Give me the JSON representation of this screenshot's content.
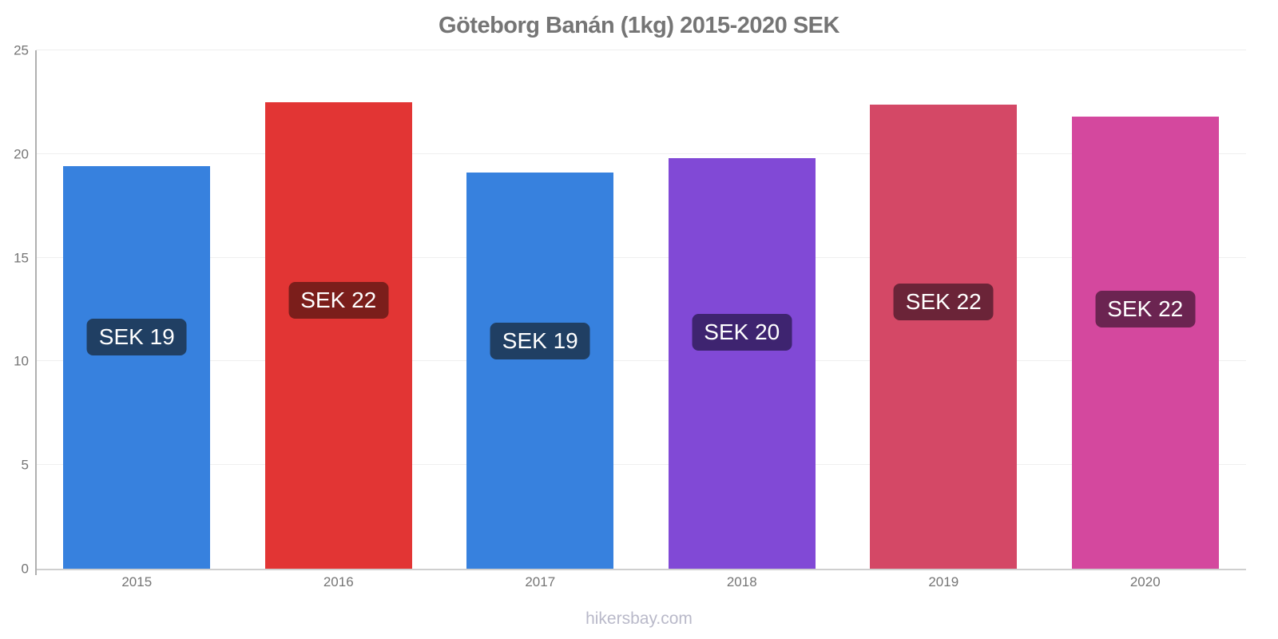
{
  "chart_data": {
    "type": "bar",
    "title": "Göteborg Banán (1kg) 2015-2020 SEK",
    "categories": [
      "2015",
      "2016",
      "2017",
      "2018",
      "2019",
      "2020"
    ],
    "values": [
      19.4,
      22.5,
      19.1,
      19.8,
      22.4,
      21.8
    ],
    "ylim": [
      0,
      25
    ],
    "yticks": [
      0,
      5,
      10,
      15,
      20,
      25
    ],
    "xlabel": "",
    "ylabel": "",
    "grid": true,
    "legend": false,
    "bars": [
      {
        "year": "2015",
        "value": 19.4,
        "label": "SEK 19",
        "color": "#3781DE",
        "label_bg": "#203F63"
      },
      {
        "year": "2016",
        "value": 22.5,
        "label": "SEK 22",
        "color": "#E23534",
        "label_bg": "#7B1E1B"
      },
      {
        "year": "2017",
        "value": 19.1,
        "label": "SEK 19",
        "color": "#3781DE",
        "label_bg": "#203F63"
      },
      {
        "year": "2018",
        "value": 19.8,
        "label": "SEK 20",
        "color": "#8149D6",
        "label_bg": "#3E2470"
      },
      {
        "year": "2019",
        "value": 22.4,
        "label": "SEK 22",
        "color": "#D44866",
        "label_bg": "#6B2438"
      },
      {
        "year": "2020",
        "value": 21.8,
        "label": "SEK 22",
        "color": "#D4489E",
        "label_bg": "#6B2451"
      }
    ]
  },
  "axis": {
    "text_color": "#757575"
  },
  "footer": {
    "text": "hikersbay.com"
  }
}
